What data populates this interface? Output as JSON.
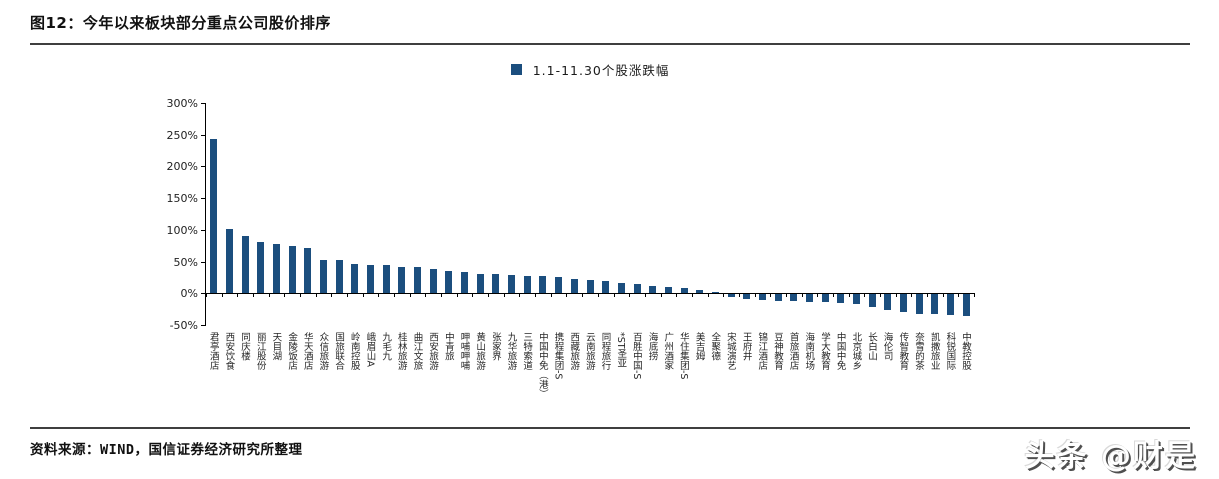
{
  "header": {
    "title": "图12：今年以来板块部分重点公司股价排序"
  },
  "footer": {
    "source": "资料来源：WIND，国信证券经济研究所整理",
    "watermark": "头条 @财是"
  },
  "colors": {
    "bar": "#1b4e7e",
    "axis": "#000000",
    "rule": "#3f3f3f"
  },
  "chart_data": {
    "type": "bar",
    "title": "",
    "legend": "1.1-11.30个股涨跌幅",
    "legend_position": "top-center",
    "xlabel": "",
    "ylabel": "",
    "ylim": [
      -50,
      300
    ],
    "yticks": [
      300,
      250,
      200,
      150,
      100,
      50,
      0,
      -50
    ],
    "ytick_suffix": "%",
    "grid": false,
    "bar_color": "#1b4e7e",
    "categories": [
      "君亭酒店",
      "西安饮食",
      "同庆楼",
      "丽江股份",
      "天目湖",
      "金陵饭店",
      "华天酒店",
      "众信旅游",
      "国旅联合",
      "岭南控股",
      "峨眉山A",
      "九毛九",
      "桂林旅游",
      "曲江文旅",
      "西安旅游",
      "中青旅",
      "呷哺呷哺",
      "黄山旅游",
      "张家界",
      "九华旅游",
      "三特索道",
      "中国中免（港）",
      "携程集团-S",
      "西藏旅游",
      "云南旅游",
      "同程旅行",
      "*ST圣亚",
      "百胜中国-S",
      "海底捞",
      "广州酒家",
      "华住集团-S",
      "美吉姆",
      "全聚德",
      "宋城演艺",
      "王府井",
      "锦江酒店",
      "豆神教育",
      "首旅酒店",
      "海南机场",
      "学大教育",
      "中国中免",
      "北京城乡",
      "长白山",
      "海伦司",
      "传智教育",
      "奈雪的茶",
      "凯撒旅业",
      "科锐国际",
      "中教控股"
    ],
    "values": [
      243,
      101,
      90,
      81,
      77,
      75,
      71,
      53,
      52,
      46,
      45,
      44,
      42,
      41,
      39,
      35,
      33,
      31,
      30,
      29,
      28,
      27,
      25,
      23,
      21,
      19,
      17,
      14,
      12,
      10,
      8,
      5,
      2,
      -4,
      -8,
      -9,
      -11,
      -11,
      -12,
      -12,
      -14,
      -16,
      -20,
      -25,
      -28,
      -31,
      -31,
      -33,
      -35
    ]
  }
}
